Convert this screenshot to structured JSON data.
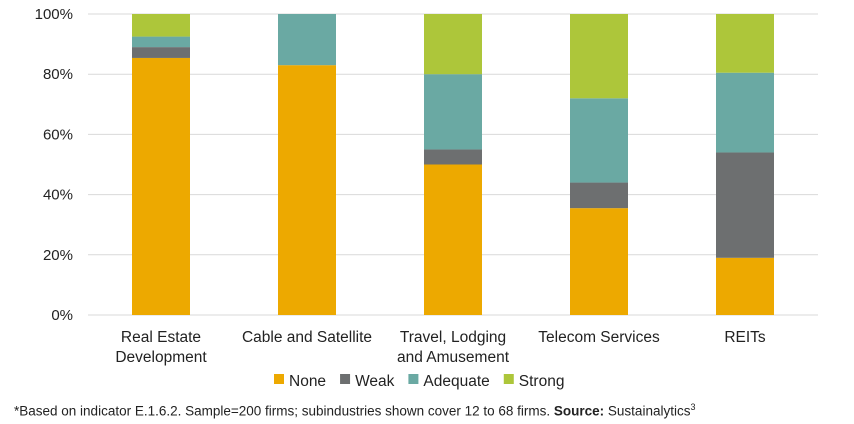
{
  "chart_data": {
    "type": "bar",
    "stacked": true,
    "categories": [
      [
        "Real Estate",
        "Development"
      ],
      [
        "Cable and Satellite"
      ],
      [
        "Travel, Lodging",
        "and Amusement"
      ],
      [
        "Telecom Services"
      ],
      [
        "REITs"
      ]
    ],
    "series": [
      {
        "name": "None",
        "color": "#EDA900",
        "values": [
          85.4,
          83,
          50,
          35.5,
          19
        ]
      },
      {
        "name": "Weak",
        "color": "#6D6F70",
        "values": [
          3.6,
          0,
          5,
          8.5,
          35
        ]
      },
      {
        "name": "Adequate",
        "color": "#6AA9A3",
        "values": [
          3.5,
          17,
          25,
          28,
          26.5
        ]
      },
      {
        "name": "Strong",
        "color": "#ADC63A",
        "values": [
          7.5,
          0,
          20,
          28,
          19.5
        ]
      }
    ],
    "ylim": [
      0,
      100
    ],
    "yticks": [
      "0%",
      "20%",
      "40%",
      "60%",
      "80%",
      "100%"
    ],
    "grid": true,
    "legend_position": "bottom"
  },
  "footnote": {
    "text": "*Based on indicator E.1.6.2.  Sample=200 firms; subindustries shown cover 12 to 68 firms. ",
    "source_label": "Source:",
    "source": " Sustainalytics",
    "sup": "3"
  }
}
